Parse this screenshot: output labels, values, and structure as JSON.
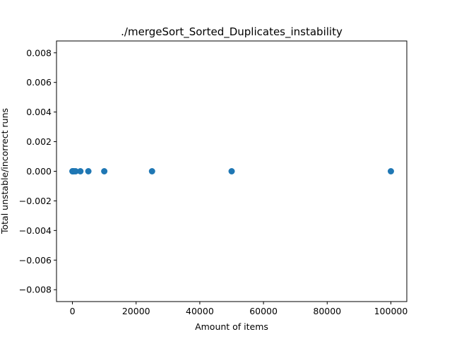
{
  "chart_data": {
    "type": "scatter",
    "title": "./mergeSort_Sorted_Duplicates_instability",
    "xlabel": "Amount of items",
    "ylabel": "Total unstable/incorrect runs",
    "xlim": [
      -5000,
      105000
    ],
    "ylim": [
      -0.0088,
      0.0088
    ],
    "xticks": [
      0,
      20000,
      40000,
      60000,
      80000,
      100000
    ],
    "xtick_labels": [
      "0",
      "20000",
      "40000",
      "60000",
      "80000",
      "100000"
    ],
    "yticks": [
      -0.008,
      -0.006,
      -0.004,
      -0.002,
      0.0,
      0.002,
      0.004,
      0.006,
      0.008
    ],
    "ytick_labels": [
      "−0.008",
      "−0.006",
      "−0.004",
      "−0.002",
      "0.000",
      "0.002",
      "0.004",
      "0.006",
      "0.008"
    ],
    "grid": false,
    "marker_color": "#1f77b4",
    "x": [
      10,
      50,
      100,
      250,
      500,
      1000,
      2500,
      5000,
      10000,
      25000,
      50000,
      100000
    ],
    "y": [
      0,
      0,
      0,
      0,
      0,
      0,
      0,
      0,
      0,
      0,
      0,
      0
    ]
  }
}
